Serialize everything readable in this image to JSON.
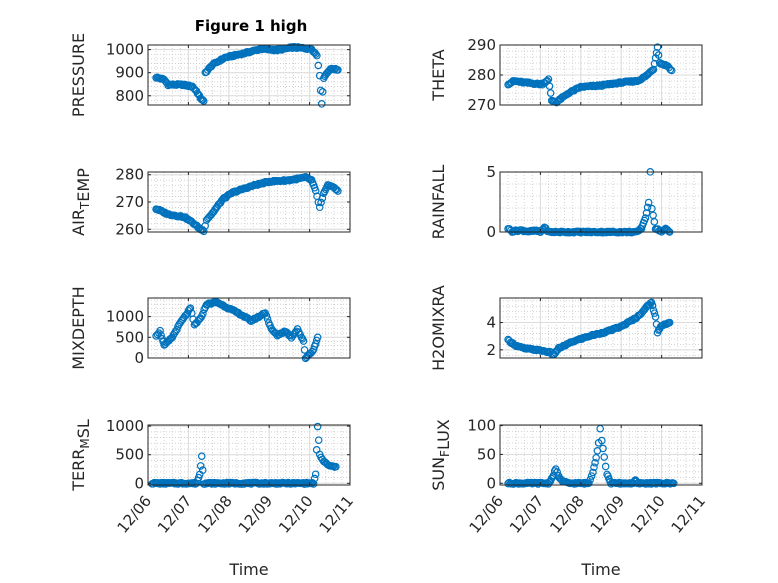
{
  "figure": {
    "title": "Figure 1 high"
  },
  "colors": {
    "series": "#0072bd",
    "axis": "#262626",
    "grid": "#dcdcdc"
  },
  "chart_data": [
    {
      "type": "scatter",
      "ylabel": "PRESSURE",
      "ylabel_parts": [
        {
          "t": "PRESSURE"
        }
      ],
      "xlabel": "",
      "xlim": [
        0,
        5
      ],
      "ylim": [
        760,
        1020
      ],
      "yticks": [
        800,
        900,
        1000
      ],
      "ytick_labels": [
        "800",
        "900",
        "1000"
      ],
      "grid": true,
      "keypoints": [
        [
          0.2,
          880
        ],
        [
          0.4,
          870
        ],
        [
          0.5,
          848
        ],
        [
          0.85,
          848
        ],
        [
          1.1,
          840
        ],
        [
          1.2,
          820
        ],
        [
          1.3,
          790
        ],
        [
          1.38,
          775
        ],
        [
          1.42,
          900
        ],
        [
          1.6,
          935
        ],
        [
          1.9,
          965
        ],
        [
          2.4,
          985
        ],
        [
          2.8,
          1003
        ],
        [
          3.2,
          998
        ],
        [
          3.6,
          1010
        ],
        [
          4.05,
          1003
        ],
        [
          4.18,
          975
        ],
        [
          4.25,
          890
        ],
        [
          4.3,
          762
        ],
        [
          4.35,
          878
        ],
        [
          4.45,
          905
        ],
        [
          4.55,
          918
        ],
        [
          4.7,
          912
        ]
      ],
      "density": 7
    },
    {
      "type": "scatter",
      "ylabel": "THETA",
      "ylabel_parts": [
        {
          "t": "THETA"
        }
      ],
      "xlabel": "",
      "xlim": [
        0,
        5
      ],
      "ylim": [
        270,
        290
      ],
      "yticks": [
        270,
        280,
        290
      ],
      "ytick_labels": [
        "270",
        "280",
        "290"
      ],
      "grid": true,
      "keypoints": [
        [
          0.2,
          277
        ],
        [
          0.35,
          278
        ],
        [
          0.6,
          277.5
        ],
        [
          0.95,
          277
        ],
        [
          1.05,
          277
        ],
        [
          1.2,
          278.5
        ],
        [
          1.28,
          271.5
        ],
        [
          1.4,
          271
        ],
        [
          1.7,
          274
        ],
        [
          2.0,
          276
        ],
        [
          2.5,
          276.5
        ],
        [
          3.0,
          277.5
        ],
        [
          3.4,
          278
        ],
        [
          3.6,
          279.5
        ],
        [
          3.8,
          282
        ],
        [
          3.9,
          289.5
        ],
        [
          3.95,
          284
        ],
        [
          4.15,
          283
        ],
        [
          4.25,
          281.5
        ]
      ],
      "density": 7
    },
    {
      "type": "scatter",
      "ylabel": "AIRTEMP",
      "ylabel_parts": [
        {
          "t": "AIR"
        },
        {
          "t": "T",
          "sub": true
        },
        {
          "t": "EMP"
        }
      ],
      "xlabel": "",
      "xlim": [
        0,
        5
      ],
      "ylim": [
        259,
        281
      ],
      "yticks": [
        260,
        270,
        280
      ],
      "ytick_labels": [
        "260",
        "270",
        "280"
      ],
      "grid": true,
      "keypoints": [
        [
          0.2,
          267.5
        ],
        [
          0.5,
          265.5
        ],
        [
          0.9,
          264.5
        ],
        [
          1.1,
          262.5
        ],
        [
          1.3,
          260
        ],
        [
          1.38,
          259.5
        ],
        [
          1.45,
          263.5
        ],
        [
          1.6,
          266
        ],
        [
          1.85,
          271
        ],
        [
          2.1,
          273.5
        ],
        [
          2.6,
          276
        ],
        [
          3.0,
          277.5
        ],
        [
          3.5,
          278
        ],
        [
          3.9,
          279
        ],
        [
          4.05,
          278
        ],
        [
          4.15,
          274
        ],
        [
          4.25,
          268
        ],
        [
          4.35,
          273
        ],
        [
          4.45,
          276
        ],
        [
          4.55,
          276
        ],
        [
          4.7,
          274
        ]
      ],
      "density": 7
    },
    {
      "type": "scatter",
      "ylabel": "RAINFALL",
      "ylabel_parts": [
        {
          "t": "RAINFALL"
        }
      ],
      "xlabel": "",
      "xlim": [
        0,
        5
      ],
      "ylim": [
        0,
        5
      ],
      "yticks": [
        0,
        5
      ],
      "ytick_labels": [
        "0",
        "5"
      ],
      "grid": true,
      "keypoints": [
        [
          0.2,
          0.3
        ],
        [
          0.3,
          0.05
        ],
        [
          0.5,
          0.15
        ],
        [
          0.7,
          0.05
        ],
        [
          0.9,
          0.1
        ],
        [
          1.0,
          0
        ],
        [
          1.1,
          0.4
        ],
        [
          1.2,
          0
        ],
        [
          3.4,
          0
        ],
        [
          3.5,
          0.3
        ],
        [
          3.6,
          1.2
        ],
        [
          3.68,
          2.4
        ],
        [
          3.72,
          5
        ],
        [
          3.76,
          2
        ],
        [
          3.85,
          0.3
        ],
        [
          4.0,
          0.05
        ],
        [
          4.1,
          0.25
        ],
        [
          4.2,
          0
        ]
      ],
      "density": 7
    },
    {
      "type": "scatter",
      "ylabel": "MIXDEPTH",
      "ylabel_parts": [
        {
          "t": "MIXDEPTH"
        }
      ],
      "xlabel": "",
      "xlim": [
        0,
        5
      ],
      "ylim": [
        0,
        1450
      ],
      "yticks": [
        0,
        500,
        1000
      ],
      "ytick_labels": [
        "0",
        "500",
        "1000"
      ],
      "grid": true,
      "keypoints": [
        [
          0.2,
          550
        ],
        [
          0.3,
          650
        ],
        [
          0.4,
          300
        ],
        [
          0.6,
          500
        ],
        [
          0.8,
          850
        ],
        [
          0.95,
          1050
        ],
        [
          1.05,
          1200
        ],
        [
          1.15,
          800
        ],
        [
          1.3,
          950
        ],
        [
          1.45,
          1300
        ],
        [
          1.7,
          1350
        ],
        [
          2.0,
          1200
        ],
        [
          2.3,
          1050
        ],
        [
          2.55,
          900
        ],
        [
          2.75,
          1000
        ],
        [
          2.9,
          1100
        ],
        [
          3.05,
          700
        ],
        [
          3.2,
          550
        ],
        [
          3.4,
          650
        ],
        [
          3.55,
          500
        ],
        [
          3.7,
          700
        ],
        [
          3.8,
          500
        ],
        [
          3.85,
          400
        ],
        [
          3.9,
          0
        ],
        [
          4.0,
          100
        ],
        [
          4.1,
          200
        ],
        [
          4.2,
          500
        ]
      ],
      "density": 7
    },
    {
      "type": "scatter",
      "ylabel": "H2OMIXRA",
      "ylabel_parts": [
        {
          "t": "H2OMIXRA"
        }
      ],
      "xlabel": "",
      "xlim": [
        0,
        5
      ],
      "ylim": [
        1.4,
        5.8
      ],
      "yticks": [
        2,
        4
      ],
      "ytick_labels": [
        "2",
        "4"
      ],
      "grid": true,
      "keypoints": [
        [
          0.2,
          2.7
        ],
        [
          0.4,
          2.3
        ],
        [
          0.6,
          2.1
        ],
        [
          0.9,
          2
        ],
        [
          1.1,
          1.9
        ],
        [
          1.25,
          1.8
        ],
        [
          1.32,
          1.6
        ],
        [
          1.45,
          2.1
        ],
        [
          1.8,
          2.6
        ],
        [
          2.2,
          3
        ],
        [
          2.6,
          3.3
        ],
        [
          3.0,
          3.7
        ],
        [
          3.4,
          4.4
        ],
        [
          3.65,
          5.2
        ],
        [
          3.75,
          5.5
        ],
        [
          3.85,
          4.4
        ],
        [
          3.9,
          3.3
        ],
        [
          4.0,
          3.8
        ],
        [
          4.1,
          3.9
        ],
        [
          4.2,
          4
        ]
      ],
      "density": 7
    },
    {
      "type": "scatter",
      "ylabel": "TERRMSL",
      "ylabel_parts": [
        {
          "t": "TERR"
        },
        {
          "t": "M",
          "sub": true
        },
        {
          "t": "SL"
        }
      ],
      "xlabel": "Time",
      "xlim": [
        0,
        5
      ],
      "ylim": [
        -30,
        1020
      ],
      "yticks": [
        0,
        500,
        1000
      ],
      "ytick_labels": [
        "0",
        "500",
        "1000"
      ],
      "grid": true,
      "keypoints": [
        [
          0.1,
          0
        ],
        [
          1.2,
          0
        ],
        [
          1.28,
          150
        ],
        [
          1.33,
          480
        ],
        [
          1.38,
          0
        ],
        [
          4.1,
          0
        ],
        [
          4.15,
          150
        ],
        [
          4.2,
          1000
        ],
        [
          4.25,
          500
        ],
        [
          4.35,
          380
        ],
        [
          4.5,
          300
        ],
        [
          4.65,
          290
        ]
      ],
      "density": 7
    },
    {
      "type": "scatter",
      "ylabel": "SUNFLUX",
      "ylabel_parts": [
        {
          "t": "SUN"
        },
        {
          "t": "F",
          "sub": true
        },
        {
          "t": "LUX"
        }
      ],
      "xlabel": "Time",
      "xlim": [
        0,
        5
      ],
      "ylim": [
        -3,
        101
      ],
      "yticks": [
        0,
        50,
        100
      ],
      "ytick_labels": [
        "0",
        "50",
        "100"
      ],
      "grid": true,
      "keypoints": [
        [
          0.2,
          0
        ],
        [
          1.2,
          0
        ],
        [
          1.3,
          10
        ],
        [
          1.38,
          25
        ],
        [
          1.45,
          12
        ],
        [
          1.55,
          3
        ],
        [
          1.7,
          0
        ],
        [
          2.2,
          0
        ],
        [
          2.3,
          20
        ],
        [
          2.38,
          45
        ],
        [
          2.44,
          70
        ],
        [
          2.48,
          95
        ],
        [
          2.52,
          75
        ],
        [
          2.58,
          45
        ],
        [
          2.65,
          15
        ],
        [
          2.75,
          0
        ],
        [
          3.3,
          0
        ],
        [
          3.35,
          5
        ],
        [
          3.4,
          0
        ],
        [
          4.3,
          0
        ]
      ],
      "density": 7
    }
  ],
  "x_axis": {
    "tick_labels": [
      "12/06",
      "12/07",
      "12/08",
      "12/09",
      "12/10",
      "12/11"
    ]
  }
}
